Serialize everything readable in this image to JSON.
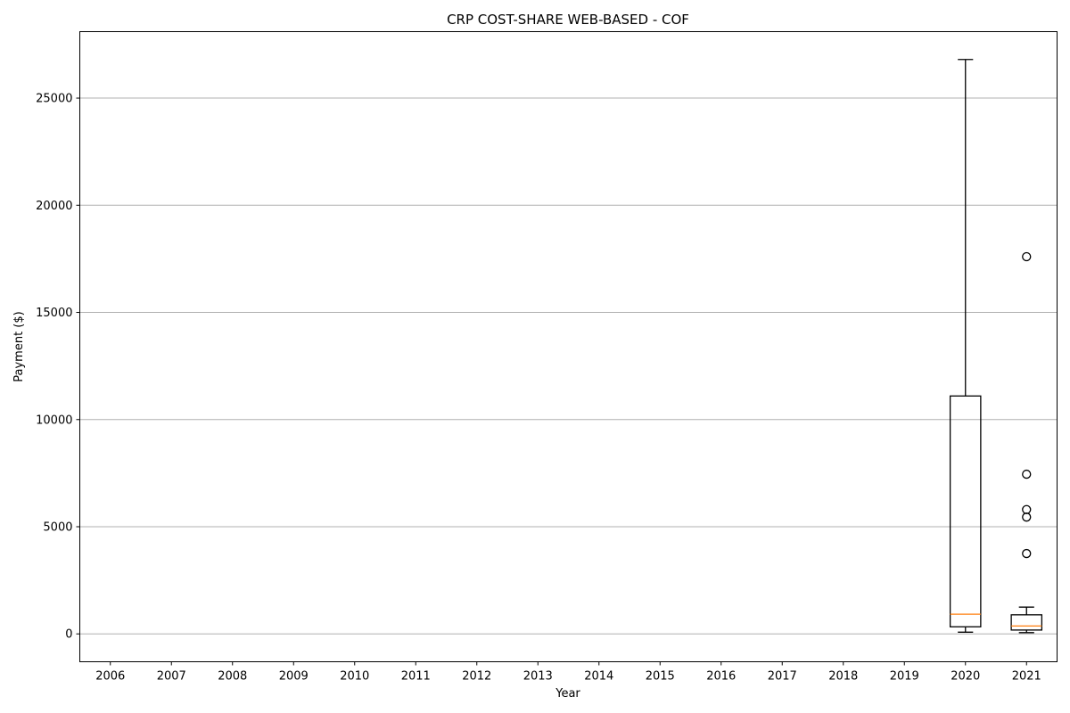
{
  "chart_data": {
    "type": "box",
    "title": "CRP COST-SHARE WEB-BASED - COF",
    "xlabel": "Year",
    "ylabel": "Payment ($)",
    "categories": [
      "2006",
      "2007",
      "2008",
      "2009",
      "2010",
      "2011",
      "2012",
      "2013",
      "2014",
      "2015",
      "2016",
      "2017",
      "2018",
      "2019",
      "2020",
      "2021"
    ],
    "ylim": [
      -1300,
      28100
    ],
    "yticks": [
      0,
      5000,
      10000,
      15000,
      20000,
      25000
    ],
    "grid": "y",
    "boxes": [
      {
        "category": "2020",
        "whisker_low": 80,
        "q1": 330,
        "median": 920,
        "q3": 11100,
        "whisker_high": 26800,
        "outliers": []
      },
      {
        "category": "2021",
        "whisker_low": 60,
        "q1": 180,
        "median": 370,
        "q3": 890,
        "whisker_high": 1250,
        "outliers": [
          17600,
          7450,
          5800,
          5450,
          3750
        ]
      }
    ],
    "colors": {
      "box": "#000000",
      "median": "#ff7f0e",
      "grid": "#b0b0b0"
    }
  }
}
